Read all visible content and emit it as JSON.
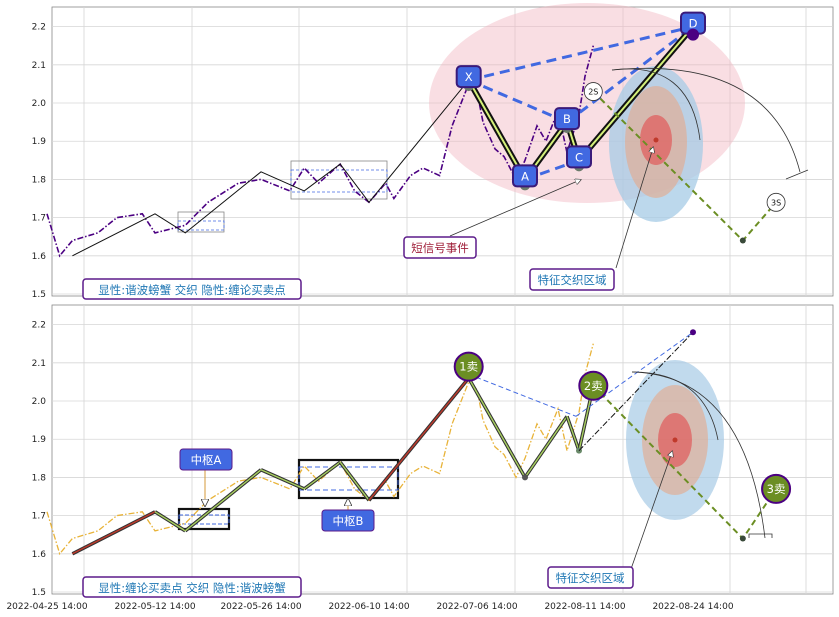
{
  "chart_data": [
    {
      "panel": "top",
      "type": "line",
      "ylim": [
        1.5,
        2.22
      ],
      "yticks": [
        1.5,
        1.6,
        1.7,
        1.8,
        1.9,
        2.0,
        2.1,
        2.2
      ],
      "grid": true,
      "series": [
        {
          "style": "purple dash-dot",
          "x": [
            "2022-04-25",
            "2022-04-27",
            "2022-04-29",
            "2022-05-03",
            "2022-05-06",
            "2022-05-10",
            "2022-05-12",
            "2022-05-16",
            "2022-05-19",
            "2022-05-23",
            "2022-05-26",
            "2022-05-30",
            "2022-06-01",
            "2022-06-03",
            "2022-06-06",
            "2022-06-08",
            "2022-06-10",
            "2022-06-14",
            "2022-06-16",
            "2022-06-20",
            "2022-06-23",
            "2022-06-27",
            "2022-06-30",
            "2022-07-04",
            "2022-07-06",
            "2022-07-08",
            "2022-07-12",
            "2022-07-15",
            "2022-07-19",
            "2022-07-22",
            "2022-07-26",
            "2022-07-29",
            "2022-08-02",
            "2022-08-05",
            "2022-08-09",
            "2022-08-11",
            "2022-08-12"
          ],
          "y": [
            1.71,
            1.6,
            1.64,
            1.66,
            1.7,
            1.71,
            1.66,
            1.68,
            1.74,
            1.79,
            1.8,
            1.77,
            1.83,
            1.79,
            1.84,
            1.77,
            1.74,
            1.79,
            1.75,
            1.81,
            1.83,
            1.81,
            1.94,
            2.05,
            2.03,
            1.95,
            1.88,
            1.86,
            1.8,
            1.85,
            1.94,
            1.9,
            1.98,
            1.87,
            1.97,
            2.07,
            2.15
          ]
        }
      ],
      "structures": {
        "zigzag_points": [
          {
            "x": "2022-04-29",
            "y": 1.6
          },
          {
            "x": "2022-05-12",
            "y": 1.71
          },
          {
            "x": "2022-05-16",
            "y": 1.66
          },
          {
            "x": "2022-05-26",
            "y": 1.82
          },
          {
            "x": "2022-06-01",
            "y": 1.77
          },
          {
            "x": "2022-06-06",
            "y": 1.84
          },
          {
            "x": "2022-06-10",
            "y": 1.74
          },
          {
            "x": "2022-07-04",
            "y": 2.06
          },
          {
            "x": "2022-07-22",
            "y": 1.8
          },
          {
            "x": "2022-08-05",
            "y": 1.95
          },
          {
            "x": "2022-08-09",
            "y": 1.85
          },
          {
            "x": "2022-08-24",
            "y": 2.2
          }
        ],
        "harmonic_points": [
          {
            "label": "X",
            "x": "2022-07-04",
            "y": 2.06
          },
          {
            "label": "A",
            "x": "2022-07-22",
            "y": 1.8
          },
          {
            "label": "B",
            "x": "2022-08-05",
            "y": 1.95
          },
          {
            "label": "C",
            "x": "2022-08-09",
            "y": 1.85
          },
          {
            "label": "D",
            "x": "2022-08-24",
            "y": 2.2
          }
        ],
        "projection": [
          {
            "label": "2S",
            "x": "2022-08-12",
            "y": 2.03
          },
          {
            "x": "2022-08-30",
            "y": 1.64
          },
          {
            "label": "3S",
            "x": "2022-09-03",
            "y": 1.74
          }
        ]
      },
      "annotations": [
        "短信号事件",
        "特征交织区域"
      ],
      "legend_text": "显性:谐波螃蟹 交织 隐性:缠论买卖点"
    },
    {
      "panel": "bottom",
      "type": "line",
      "ylim": [
        1.5,
        2.22
      ],
      "yticks": [
        1.5,
        1.6,
        1.7,
        1.8,
        1.9,
        2.0,
        2.1,
        2.2
      ],
      "xticks": [
        "2022-04-25 14:00",
        "2022-05-12 14:00",
        "2022-05-26 14:00",
        "2022-06-10 14:00",
        "2022-07-06 14:00",
        "2022-08-11 14:00",
        "2022-08-24 14:00"
      ],
      "grid": true,
      "series": [
        {
          "style": "orange dash-dot",
          "x": [
            "2022-04-25",
            "2022-04-27",
            "2022-04-29",
            "2022-05-03",
            "2022-05-06",
            "2022-05-10",
            "2022-05-12",
            "2022-05-16",
            "2022-05-19",
            "2022-05-23",
            "2022-05-26",
            "2022-05-30",
            "2022-06-01",
            "2022-06-03",
            "2022-06-06",
            "2022-06-08",
            "2022-06-10",
            "2022-06-14",
            "2022-06-16",
            "2022-06-20",
            "2022-06-23",
            "2022-06-27",
            "2022-06-30",
            "2022-07-04",
            "2022-07-06",
            "2022-07-08",
            "2022-07-12",
            "2022-07-15",
            "2022-07-19",
            "2022-07-22",
            "2022-07-26",
            "2022-07-29",
            "2022-08-02",
            "2022-08-05",
            "2022-08-09",
            "2022-08-11",
            "2022-08-12"
          ],
          "y": [
            1.71,
            1.6,
            1.64,
            1.66,
            1.7,
            1.71,
            1.66,
            1.68,
            1.74,
            1.79,
            1.8,
            1.77,
            1.83,
            1.79,
            1.84,
            1.77,
            1.74,
            1.79,
            1.75,
            1.81,
            1.83,
            1.81,
            1.94,
            2.05,
            2.03,
            1.95,
            1.88,
            1.86,
            1.8,
            1.85,
            1.94,
            1.9,
            1.98,
            1.87,
            1.97,
            2.07,
            2.15
          ]
        }
      ],
      "annotations": [
        "中枢A",
        "中枢B",
        "特征交织区域"
      ],
      "signals": [
        {
          "label": "1卖",
          "x": "2022-07-04",
          "y": 2.09
        },
        {
          "label": "2卖",
          "x": "2022-08-12",
          "y": 2.04
        },
        {
          "label": "3卖",
          "x": "2022-09-03",
          "y": 1.77
        }
      ],
      "legend_text": "显性:缠论买卖点 交织 隐性:谐波螃蟹"
    }
  ],
  "colors": {
    "purple": "#4b0082",
    "orange": "#e8b339",
    "blue": "#4169e1",
    "green_signal": "#6b8e23",
    "red_zone": "#e06666",
    "blue_zone": "#9ecae1"
  }
}
